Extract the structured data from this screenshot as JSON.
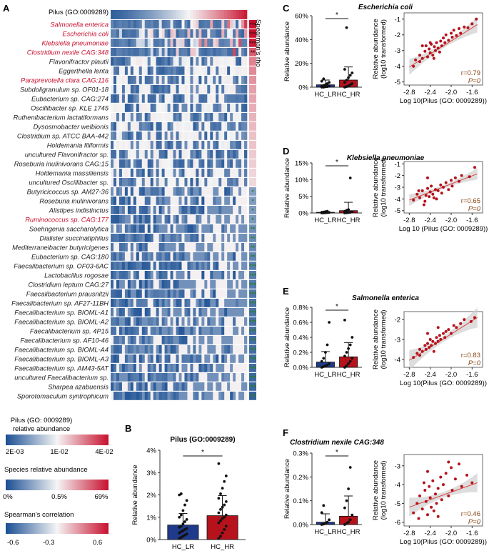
{
  "panel_labels": {
    "a": "A",
    "b": "B",
    "c": "C",
    "d": "D",
    "e": "E",
    "f": "F"
  },
  "heatmap": {
    "pilus_label": "Pilus (GO:0009289)",
    "rho_label": "Spearman's rho",
    "highlight_color": "#c8102e",
    "species": [
      {
        "name": "Salmonella enterica",
        "hl": true,
        "sig": "***"
      },
      {
        "name": "Escherichia coli",
        "hl": true,
        "sig": "***"
      },
      {
        "name": "Klebsiella pneumoniae",
        "hl": true,
        "sig": "***"
      },
      {
        "name": "Clostridium nexile CAG:348",
        "hl": true,
        "sig": "**"
      },
      {
        "name": "Flavonifractor plautii",
        "hl": false,
        "sig": ""
      },
      {
        "name": "Eggerthella lenta",
        "hl": false,
        "sig": ""
      },
      {
        "name": "Paraprevotella clara CAG:116",
        "hl": true,
        "sig": ""
      },
      {
        "name": "Subdoligranulum sp. OF01-18",
        "hl": false,
        "sig": ""
      },
      {
        "name": "Eubacterium sp. CAG:274",
        "hl": false,
        "sig": ""
      },
      {
        "name": "Oscillibacter sp. KLE 1745",
        "hl": false,
        "sig": ""
      },
      {
        "name": "Ruthenibacterium lactatiformans",
        "hl": false,
        "sig": ""
      },
      {
        "name": "Dysosmobacter welbionis",
        "hl": false,
        "sig": ""
      },
      {
        "name": "Clostridium sp. ATCC BAA-442",
        "hl": false,
        "sig": ""
      },
      {
        "name": "Holdemania filiformis",
        "hl": false,
        "sig": ""
      },
      {
        "name": "uncultured Flavonifractor sp.",
        "hl": false,
        "sig": ""
      },
      {
        "name": "Roseburia inulinivorans CAG:15",
        "hl": false,
        "sig": ""
      },
      {
        "name": "Holdemania massiliensis",
        "hl": false,
        "sig": ""
      },
      {
        "name": "uncultured Oscillibacter sp.",
        "hl": false,
        "sig": ""
      },
      {
        "name": "Butyricicoccus sp. AM27-36",
        "hl": false,
        "sig": "*"
      },
      {
        "name": "Roseburia inulinivorans",
        "hl": false,
        "sig": "*"
      },
      {
        "name": "Alistipes indistinctus",
        "hl": false,
        "sig": "*"
      },
      {
        "name": "Ruminococcus sp. CAG:177",
        "hl": true,
        "sig": "*"
      },
      {
        "name": "Soehngenia saccharolytica",
        "hl": false,
        "sig": "**"
      },
      {
        "name": "Dialister succinatiphilus",
        "hl": false,
        "sig": "**"
      },
      {
        "name": "Mediterraneibacter butyricigenes",
        "hl": false,
        "sig": "**"
      },
      {
        "name": "Eubacterium sp. CAG:180",
        "hl": false,
        "sig": "**"
      },
      {
        "name": "Faecalibacterium sp. OF03-6AC",
        "hl": false,
        "sig": "***"
      },
      {
        "name": "Lactobacillus rogosae",
        "hl": false,
        "sig": "***"
      },
      {
        "name": "Clostridium leptum CAG:27",
        "hl": false,
        "sig": "***"
      },
      {
        "name": "Faecalibacterium prausnitzii",
        "hl": false,
        "sig": "***"
      },
      {
        "name": "Faecalibacterium sp. AF27-11BH",
        "hl": false,
        "sig": "***"
      },
      {
        "name": "Faecalibacterium sp. BIOML-A1",
        "hl": false,
        "sig": "***"
      },
      {
        "name": "Faecalibacterium sp. BIOML-A2",
        "hl": false,
        "sig": "***"
      },
      {
        "name": "Faecalibacterium sp. 4P15",
        "hl": false,
        "sig": "***"
      },
      {
        "name": "Faecalibacterium sp. AF10-46",
        "hl": false,
        "sig": "***"
      },
      {
        "name": "Faecalibacterium sp. BIOML-A4",
        "hl": false,
        "sig": "***"
      },
      {
        "name": "Faecalibacterium sp. BIOML-A3",
        "hl": false,
        "sig": "***"
      },
      {
        "name": "Faecalibacterium sp. AM43-5AT",
        "hl": false,
        "sig": "***"
      },
      {
        "name": "uncultured Faecalibacterium sp.",
        "hl": false,
        "sig": "***"
      },
      {
        "name": "Sharpea azabuensis",
        "hl": false,
        "sig": "***"
      },
      {
        "name": "Sporotomaculum syntrophicum",
        "hl": false,
        "sig": "***"
      }
    ],
    "rho": [
      0.72,
      0.7,
      0.66,
      0.46,
      0.35,
      0.33,
      0.3,
      0.26,
      0.24,
      0.22,
      0.2,
      0.18,
      0.16,
      0.15,
      0.13,
      0.12,
      0.1,
      0.09,
      -0.36,
      -0.37,
      -0.38,
      -0.39,
      -0.42,
      -0.44,
      -0.45,
      -0.47,
      -0.5,
      -0.51,
      -0.52,
      -0.53,
      -0.54,
      -0.55,
      -0.56,
      -0.56,
      -0.57,
      -0.57,
      -0.58,
      -0.58,
      -0.59,
      -0.6,
      -0.62
    ]
  },
  "legends": {
    "pilus_title_1": "Pilus (GO: 0009289)",
    "pilus_title_2": "relative abundance",
    "pilus_ticks": [
      "2E-03",
      "1E-02",
      "4E-02"
    ],
    "species_title": "Species relative abundance",
    "species_ticks": [
      "0%",
      "0.5%",
      "69%"
    ],
    "spearman_title": "Spearman's correlation",
    "spearman_ticks": [
      "-0.6",
      "-0.3",
      "0.6"
    ]
  },
  "colors": {
    "lr": "#1f3a8a",
    "hr": "#b5121b",
    "pos": "#c8102e",
    "neg": "#1b4f93",
    "scatter": "#b5121b",
    "sig_green": "#2e7d32",
    "r_text": "#8b4513"
  },
  "chart_data": [
    {
      "type": "bar",
      "id": "B",
      "title": "Pilus (GO:0009289)",
      "ylabel": "Relative abundance",
      "categories": [
        "HC_LR",
        "HC_HR"
      ],
      "values": [
        0.65,
        1.07
      ],
      "errors": [
        0.52,
        0.9
      ],
      "yticks": [
        "0%",
        "1%",
        "2%",
        "3%",
        "4%"
      ],
      "ylim": [
        0,
        4
      ],
      "sig": "*",
      "points": [
        [
          0.05,
          0.1,
          0.15,
          0.2,
          0.25,
          0.3,
          0.35,
          0.4,
          0.45,
          0.5,
          0.55,
          0.6,
          0.7,
          0.8,
          0.9,
          1.0,
          1.1,
          1.3,
          1.55,
          1.75,
          2.0,
          2.05
        ],
        [
          0.05,
          0.15,
          0.3,
          0.45,
          0.6,
          0.75,
          0.85,
          0.95,
          1.0,
          1.1,
          1.2,
          1.35,
          1.45,
          1.55,
          1.7,
          1.85,
          2.05,
          2.3,
          2.6,
          2.85,
          3.4
        ]
      ]
    },
    {
      "type": "bar",
      "id": "C",
      "ylabel": "Relative abundance",
      "categories": [
        "HC_LR",
        "HC_HR"
      ],
      "values": [
        2,
        6
      ],
      "errors": [
        4,
        11
      ],
      "yticks": [
        "0%",
        "20%",
        "40%",
        "60%"
      ],
      "ylim": [
        0,
        60
      ],
      "sig": "*",
      "points": [
        [
          0,
          0,
          0.3,
          0.5,
          0.8,
          1,
          1.5,
          2,
          3,
          4,
          5,
          7
        ],
        [
          0,
          0.5,
          1,
          2,
          3,
          4,
          6,
          8,
          10,
          12,
          15,
          50
        ]
      ]
    },
    {
      "type": "scatter",
      "id": "C2",
      "title": "Escherichia coli",
      "xlabel": "Log 10(Pilus (GO: 0009289))",
      "ylabel": "Relative abundance (log10 transformed)",
      "xticks": [
        "-2.8",
        "-2.4",
        "-2.0",
        "-1.6"
      ],
      "yticks": [
        "-5",
        "-4",
        "-3",
        "-2",
        "-1"
      ],
      "xlim": [
        -2.9,
        -1.4
      ],
      "ylim": [
        -5.2,
        -0.6
      ],
      "fit": [
        [
          -2.8,
          -4.05
        ],
        [
          -1.5,
          -1.35
        ]
      ],
      "r": "r=0.79",
      "p": "P=0",
      "points": [
        [
          -2.72,
          -4.0
        ],
        [
          -2.68,
          -3.6
        ],
        [
          -2.6,
          -3.3
        ],
        [
          -2.55,
          -3.5
        ],
        [
          -2.5,
          -3.05
        ],
        [
          -2.48,
          -2.7
        ],
        [
          -2.45,
          -3.4
        ],
        [
          -2.42,
          -2.9
        ],
        [
          -2.4,
          -3.15
        ],
        [
          -2.38,
          -2.6
        ],
        [
          -2.35,
          -3.3
        ],
        [
          -2.32,
          -2.75
        ],
        [
          -2.3,
          -3.0
        ],
        [
          -2.28,
          -2.5
        ],
        [
          -2.25,
          -2.85
        ],
        [
          -2.22,
          -3.1
        ],
        [
          -2.2,
          -2.4
        ],
        [
          -2.18,
          -2.7
        ],
        [
          -2.15,
          -2.2
        ],
        [
          -2.12,
          -2.5
        ],
        [
          -2.1,
          -2.0
        ],
        [
          -2.05,
          -2.35
        ],
        [
          -2.0,
          -1.9
        ],
        [
          -1.98,
          -2.15
        ],
        [
          -1.95,
          -1.7
        ],
        [
          -1.9,
          -2.05
        ],
        [
          -1.85,
          -1.6
        ],
        [
          -1.82,
          -1.9
        ],
        [
          -1.75,
          -1.5
        ],
        [
          -1.68,
          -1.55
        ],
        [
          -1.6,
          -1.3
        ],
        [
          -1.52,
          -1.0
        ],
        [
          -2.55,
          -2.7
        ],
        [
          -2.33,
          -3.5
        ],
        [
          -2.6,
          -3.7
        ],
        [
          -2.4,
          -2.5
        ]
      ]
    },
    {
      "type": "bar",
      "id": "D",
      "ylabel": "Relative abundance",
      "categories": [
        "HC_LR",
        "HC_HR"
      ],
      "values": [
        0.2,
        0.7
      ],
      "errors": [
        0.2,
        2.5
      ],
      "yticks": [
        "0%",
        "5%",
        "10%",
        "15%"
      ],
      "ylim": [
        0,
        15
      ],
      "sig": "*",
      "points": [
        [
          0,
          0,
          0.05,
          0.1,
          0.15,
          0.2,
          0.3,
          0.4,
          0.5
        ],
        [
          0,
          0.05,
          0.1,
          0.2,
          0.3,
          0.5,
          0.8,
          1.0,
          10.5
        ]
      ]
    },
    {
      "type": "scatter",
      "id": "D2",
      "title": "Klebsiella pneumoniae",
      "xlabel": "Log 10 (Pilus (GO: 0009289))",
      "ylabel": "Relative abundance (log10 transformed)",
      "xticks": [
        "-2.8",
        "-2.4",
        "-2.0",
        "-1.6"
      ],
      "yticks": [
        "-5",
        "-4",
        "-3",
        "-2",
        "-1"
      ],
      "xlim": [
        -2.9,
        -1.4
      ],
      "ylim": [
        -5.2,
        -0.8
      ],
      "fit": [
        [
          -2.8,
          -4.1
        ],
        [
          -1.5,
          -1.85
        ]
      ],
      "r": "r=0.65",
      "p": "P=0",
      "points": [
        [
          -2.72,
          -4.1
        ],
        [
          -2.65,
          -3.6
        ],
        [
          -2.6,
          -3.9
        ],
        [
          -2.55,
          -3.3
        ],
        [
          -2.5,
          -4.2
        ],
        [
          -2.48,
          -3.7
        ],
        [
          -2.45,
          -3.1
        ],
        [
          -2.42,
          -3.8
        ],
        [
          -2.4,
          -3.4
        ],
        [
          -2.38,
          -2.9
        ],
        [
          -2.35,
          -3.6
        ],
        [
          -2.3,
          -3.2
        ],
        [
          -2.28,
          -4.0
        ],
        [
          -2.25,
          -3.3
        ],
        [
          -2.2,
          -2.8
        ],
        [
          -2.18,
          -3.5
        ],
        [
          -2.15,
          -3.0
        ],
        [
          -2.1,
          -2.6
        ],
        [
          -2.05,
          -3.2
        ],
        [
          -2.0,
          -2.4
        ],
        [
          -1.98,
          -2.9
        ],
        [
          -1.92,
          -2.2
        ],
        [
          -1.85,
          -2.5
        ],
        [
          -1.8,
          -2.0
        ],
        [
          -1.65,
          -2.1
        ],
        [
          -1.55,
          -1.3
        ],
        [
          -2.45,
          -2.2
        ],
        [
          -2.33,
          -3.9
        ],
        [
          -2.62,
          -3.3
        ],
        [
          -2.52,
          -4.5
        ]
      ]
    },
    {
      "type": "bar",
      "id": "E",
      "ylabel": "Relative abundance",
      "categories": [
        "HC_LR",
        "HC_HR"
      ],
      "values": [
        0.07,
        0.14
      ],
      "errors": [
        0.14,
        0.19
      ],
      "yticks": [
        "0.0%",
        "0.2%",
        "0.4%",
        "0.6%",
        "0.8%"
      ],
      "ylim": [
        0,
        0.8
      ],
      "sig": "*",
      "points": [
        [
          0,
          0.01,
          0.02,
          0.03,
          0.05,
          0.08,
          0.12,
          0.2,
          0.3,
          0.6
        ],
        [
          0,
          0.02,
          0.05,
          0.08,
          0.12,
          0.15,
          0.2,
          0.25,
          0.3,
          0.4,
          0.63
        ]
      ]
    },
    {
      "type": "scatter",
      "id": "E2",
      "title": "Salmonella enterica",
      "xlabel": "Log 10(Pilus (GO: 0009289))",
      "ylabel": "Relative abundance (log10 transformed)",
      "xticks": [
        "-2.8",
        "-2.4",
        "-2.0",
        "-1.6"
      ],
      "yticks": [
        "-4",
        "-3",
        "-2"
      ],
      "xlim": [
        -2.9,
        -1.4
      ],
      "ylim": [
        -4.4,
        -1.6
      ],
      "fit": [
        [
          -2.8,
          -4.05
        ],
        [
          -1.5,
          -1.9
        ]
      ],
      "r": "r=0.83",
      "p": "P=0",
      "points": [
        [
          -2.72,
          -3.9
        ],
        [
          -2.65,
          -3.7
        ],
        [
          -2.6,
          -3.5
        ],
        [
          -2.55,
          -3.6
        ],
        [
          -2.5,
          -3.3
        ],
        [
          -2.48,
          -3.5
        ],
        [
          -2.45,
          -3.2
        ],
        [
          -2.42,
          -3.4
        ],
        [
          -2.4,
          -3.0
        ],
        [
          -2.38,
          -3.3
        ],
        [
          -2.35,
          -3.1
        ],
        [
          -2.3,
          -3.2
        ],
        [
          -2.28,
          -2.9
        ],
        [
          -2.25,
          -3.1
        ],
        [
          -2.22,
          -2.8
        ],
        [
          -2.2,
          -3.0
        ],
        [
          -2.15,
          -2.7
        ],
        [
          -2.12,
          -2.9
        ],
        [
          -2.1,
          -2.6
        ],
        [
          -2.05,
          -2.5
        ],
        [
          -2.0,
          -2.7
        ],
        [
          -1.95,
          -2.3
        ],
        [
          -1.9,
          -2.4
        ],
        [
          -1.82,
          -2.2
        ],
        [
          -1.75,
          -2.0
        ],
        [
          -1.62,
          -2.1
        ],
        [
          -1.55,
          -1.9
        ],
        [
          -2.45,
          -2.7
        ],
        [
          -2.33,
          -3.6
        ],
        [
          -2.6,
          -3.8
        ],
        [
          -2.25,
          -2.4
        ]
      ]
    },
    {
      "type": "bar",
      "id": "F",
      "title": "Clostridium nexile CAG:348",
      "ylabel": "Relative abundance",
      "categories": [
        "HC_LR",
        "HC_HR"
      ],
      "values": [
        0.01,
        0.035
      ],
      "errors": [
        0.035,
        0.085
      ],
      "yticks": [
        "0.0%",
        "0.1%",
        "0.2%",
        "0.3%"
      ],
      "ylim": [
        0,
        0.3
      ],
      "sig": "*",
      "points": [
        [
          0,
          0.002,
          0.005,
          0.01,
          0.02,
          0.05,
          0.08
        ],
        [
          0,
          0.005,
          0.01,
          0.02,
          0.04,
          0.07,
          0.1,
          0.15,
          0.24
        ]
      ]
    },
    {
      "type": "scatter",
      "id": "F2",
      "xlabel": "Log 10(Pilus (GO: 0009289))",
      "ylabel": "Relative abundance (log10 transformed)",
      "xticks": [
        "-2.8",
        "-2.4",
        "-2.0",
        "-1.6"
      ],
      "yticks": [
        "-6",
        "-5",
        "-4",
        "-3"
      ],
      "xlim": [
        -2.9,
        -1.4
      ],
      "ylim": [
        -6.2,
        -2.4
      ],
      "fit": [
        [
          -2.8,
          -5.2
        ],
        [
          -1.5,
          -3.9
        ]
      ],
      "r": "r=0.46",
      "p": "P=0",
      "points": [
        [
          -2.72,
          -5.5
        ],
        [
          -2.65,
          -5.0
        ],
        [
          -2.6,
          -4.6
        ],
        [
          -2.55,
          -5.3
        ],
        [
          -2.5,
          -4.3
        ],
        [
          -2.48,
          -4.9
        ],
        [
          -2.45,
          -5.6
        ],
        [
          -2.42,
          -4.1
        ],
        [
          -2.4,
          -4.7
        ],
        [
          -2.38,
          -5.2
        ],
        [
          -2.35,
          -3.8
        ],
        [
          -2.3,
          -4.5
        ],
        [
          -2.28,
          -5.0
        ],
        [
          -2.25,
          -4.2
        ],
        [
          -2.2,
          -3.6
        ],
        [
          -2.18,
          -4.8
        ],
        [
          -2.15,
          -4.0
        ],
        [
          -2.1,
          -3.4
        ],
        [
          -2.05,
          -4.6
        ],
        [
          -2.0,
          -3.1
        ],
        [
          -1.98,
          -4.3
        ],
        [
          -1.92,
          -3.7
        ],
        [
          -1.85,
          -2.9
        ],
        [
          -1.8,
          -4.1
        ],
        [
          -1.7,
          -3.5
        ],
        [
          -1.6,
          -3.9
        ],
        [
          -2.45,
          -3.3
        ],
        [
          -2.33,
          -5.4
        ],
        [
          -2.62,
          -5.8
        ],
        [
          -2.52,
          -3.9
        ],
        [
          -2.05,
          -2.8
        ],
        [
          -2.25,
          -5.7
        ]
      ]
    }
  ]
}
